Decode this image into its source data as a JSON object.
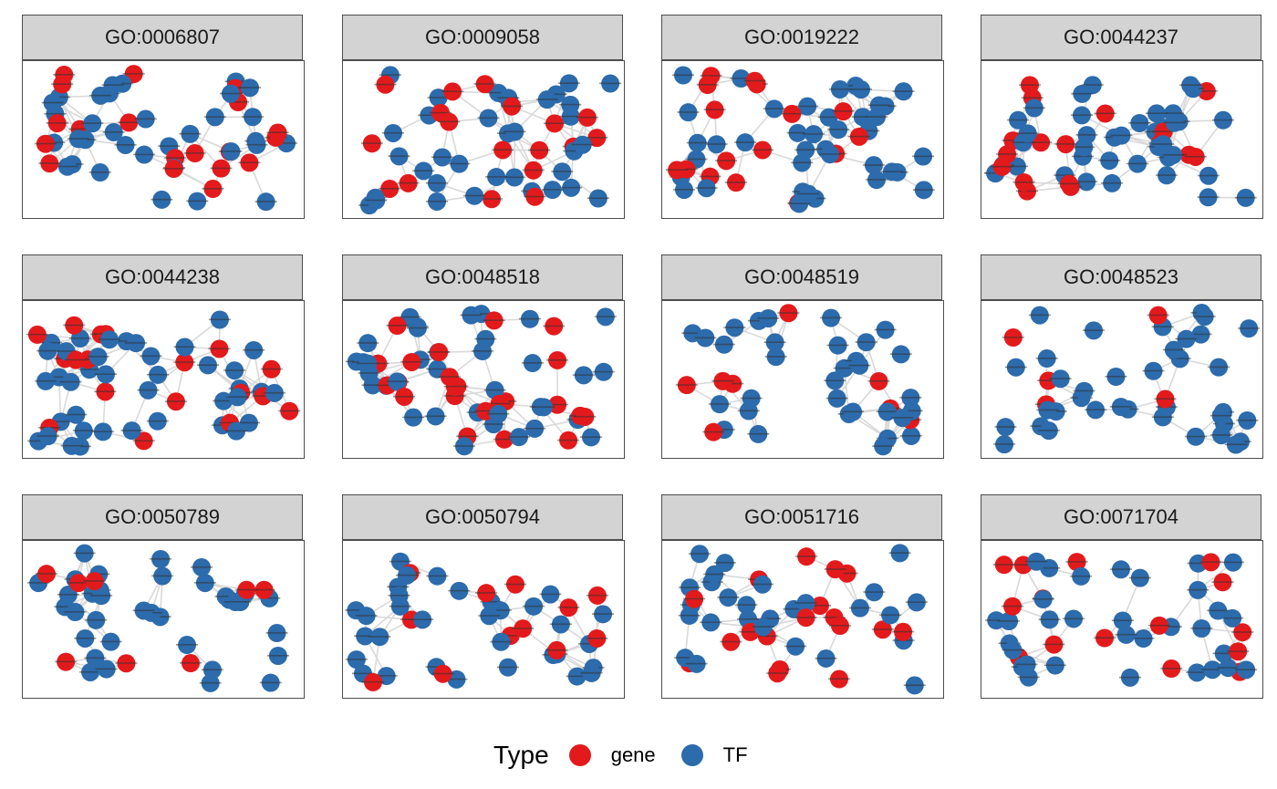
{
  "legend": {
    "title": "Type",
    "items": [
      {
        "label": "gene",
        "color": "#e31a1c"
      },
      {
        "label": "TF",
        "color": "#2c6bac"
      }
    ]
  },
  "colors": {
    "gene": "#e31a1c",
    "TF": "#2c6bac",
    "edge": "#d9d9d9",
    "strip": "#d3d3d3"
  },
  "panels": [
    {
      "title": "GO:0006807"
    },
    {
      "title": "GO:0009058"
    },
    {
      "title": "GO:0019222"
    },
    {
      "title": "GO:0044237"
    },
    {
      "title": "GO:0044238"
    },
    {
      "title": "GO:0048518"
    },
    {
      "title": "GO:0048519"
    },
    {
      "title": "GO:0048523"
    },
    {
      "title": "GO:0050789"
    },
    {
      "title": "GO:0050794"
    },
    {
      "title": "GO:0051716"
    },
    {
      "title": "GO:0071704"
    }
  ]
}
